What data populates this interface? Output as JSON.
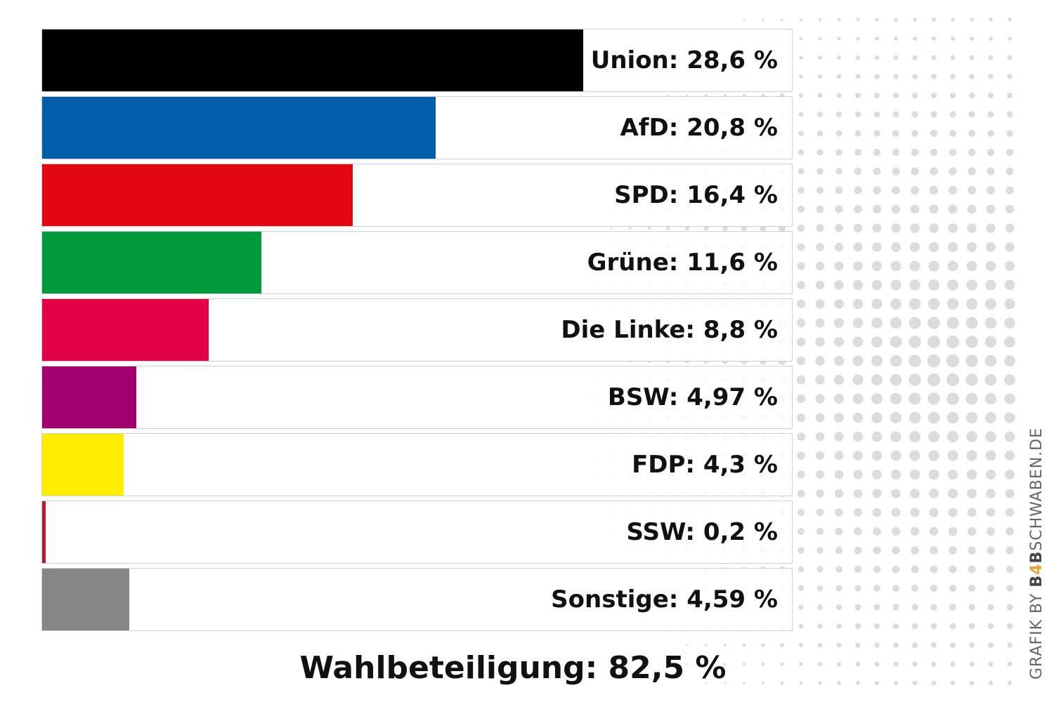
{
  "chart_data": {
    "type": "bar",
    "orientation": "horizontal",
    "xlim": [
      0,
      39.7
    ],
    "categories": [
      "Union",
      "AfD",
      "SPD",
      "Grüne",
      "Die Linke",
      "BSW",
      "FDP",
      "SSW",
      "Sonstige"
    ],
    "values": [
      28.6,
      20.8,
      16.4,
      11.6,
      8.8,
      4.97,
      4.3,
      0.2,
      4.59
    ],
    "labels": [
      "Union: 28,6 %",
      "AfD: 20,8 %",
      "SPD: 16,4 %",
      "Grüne: 11,6 %",
      "Die Linke: 8,8 %",
      "BSW: 4,97 %",
      "FDP: 4,3 %",
      "SSW: 0,2 %",
      "Sonstige: 4,59 %"
    ],
    "colors": [
      "#000000",
      "#005ea8",
      "#e30613",
      "#009a3e",
      "#e30046",
      "#a3006e",
      "#ffed00",
      "#b71c34",
      "#868686"
    ],
    "grid": false,
    "legend": "none"
  },
  "turnout": {
    "label": "Wahlbeteiligung: 82,5 %",
    "value": 82.5
  },
  "credit": {
    "prefix": "GRAFIK BY ",
    "brand_b": "B",
    "brand_4": "4",
    "brand_b2": "B",
    "suffix": "SCHWABEN.DE"
  }
}
